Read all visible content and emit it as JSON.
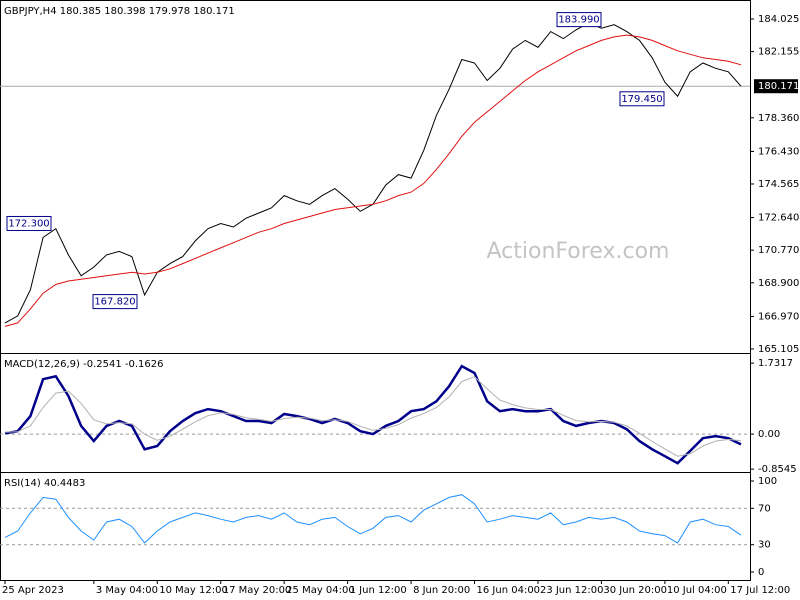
{
  "chart_data": [
    {
      "type": "line",
      "title": "GBPJPY,H4 180.385 180.398 179.978 180.171",
      "watermark": "ActionForex.com",
      "series": [
        {
          "color": "#000000",
          "values": [
            166.6,
            167.0,
            168.5,
            171.5,
            172.0,
            170.5,
            169.3,
            169.8,
            170.5,
            170.7,
            170.4,
            168.2,
            169.5,
            170.0,
            170.4,
            171.3,
            172.0,
            172.3,
            172.1,
            172.6,
            172.9,
            173.2,
            173.9,
            173.6,
            173.4,
            173.9,
            174.3,
            173.7,
            173.0,
            173.4,
            174.5,
            175.1,
            174.9,
            176.5,
            178.5,
            180.0,
            181.7,
            181.5,
            180.5,
            181.2,
            182.3,
            182.8,
            182.4,
            183.3,
            182.9,
            183.4,
            183.8,
            183.5,
            183.7,
            183.3,
            182.8,
            181.8,
            180.4,
            179.6,
            181.0,
            181.5,
            181.2,
            181.0,
            180.171
          ]
        },
        {
          "color": "#e01010",
          "values": [
            166.4,
            166.6,
            167.4,
            168.3,
            168.8,
            169.0,
            169.1,
            169.2,
            169.3,
            169.4,
            169.5,
            169.4,
            169.5,
            169.7,
            170.0,
            170.3,
            170.6,
            170.9,
            171.2,
            171.5,
            171.8,
            172.0,
            172.3,
            172.5,
            172.7,
            172.9,
            173.1,
            173.2,
            173.3,
            173.4,
            173.6,
            173.9,
            174.1,
            174.6,
            175.4,
            176.3,
            177.3,
            178.1,
            178.7,
            179.3,
            179.9,
            180.5,
            181.0,
            181.4,
            181.8,
            182.2,
            182.5,
            182.8,
            183.0,
            183.1,
            183.0,
            182.8,
            182.5,
            182.2,
            182.0,
            181.8,
            181.7,
            181.6,
            181.4
          ]
        }
      ],
      "ylim": [
        164.93,
        185.0
      ],
      "yticks": [
        184.025,
        182.155,
        {
          "value": 178.36,
          "label": "178.360"
        },
        {
          "value": 176.43,
          "label": "176.430"
        },
        174.565,
        {
          "value": 172.64,
          "label": "172.640"
        },
        {
          "value": 170.77,
          "label": "170.770"
        },
        {
          "value": 168.9,
          "label": "168.900"
        },
        {
          "value": 166.97,
          "label": "166.970"
        },
        165.105
      ],
      "last_price": 180.171,
      "annotations": [
        {
          "value": 172.3,
          "label": "172.300"
        },
        {
          "value": 167.82,
          "label": "167.820"
        },
        {
          "value": 183.99,
          "label": "183.990"
        },
        {
          "value": 179.45,
          "label": "179.450"
        }
      ]
    },
    {
      "type": "line",
      "title": "MACD(12,26,9) -0.2541 -0.1626",
      "series": [
        {
          "color": "#00008b",
          "values": [
            0.02,
            0.07,
            0.44,
            1.34,
            1.41,
            0.93,
            0.2,
            -0.17,
            0.2,
            0.32,
            0.2,
            -0.37,
            -0.29,
            0.07,
            0.32,
            0.51,
            0.61,
            0.56,
            0.44,
            0.32,
            0.32,
            0.27,
            0.49,
            0.44,
            0.37,
            0.27,
            0.37,
            0.27,
            0.07,
            0.0,
            0.2,
            0.32,
            0.56,
            0.61,
            0.8,
            1.17,
            1.66,
            1.49,
            0.8,
            0.56,
            0.61,
            0.56,
            0.56,
            0.61,
            0.32,
            0.2,
            0.27,
            0.32,
            0.27,
            0.12,
            -0.17,
            -0.37,
            -0.54,
            -0.71,
            -0.41,
            -0.1,
            -0.05,
            -0.1,
            -0.25
          ]
        },
        {
          "color": "#b0b0b0",
          "values": [
            0.05,
            0.06,
            0.2,
            0.65,
            1.0,
            1.05,
            0.75,
            0.35,
            0.25,
            0.28,
            0.25,
            0.0,
            -0.15,
            -0.05,
            0.12,
            0.3,
            0.45,
            0.52,
            0.48,
            0.4,
            0.36,
            0.31,
            0.38,
            0.41,
            0.39,
            0.33,
            0.35,
            0.31,
            0.19,
            0.09,
            0.14,
            0.23,
            0.39,
            0.5,
            0.65,
            0.91,
            1.28,
            1.4,
            1.1,
            0.83,
            0.72,
            0.64,
            0.6,
            0.6,
            0.46,
            0.33,
            0.3,
            0.31,
            0.29,
            0.2,
            0.02,
            -0.18,
            -0.36,
            -0.54,
            -0.48,
            -0.29,
            -0.17,
            -0.13,
            -0.16
          ]
        }
      ],
      "ylim": [
        -0.9,
        1.93
      ],
      "yticks": [
        1.7317,
        {
          "value": 0,
          "label": "0.00"
        },
        -0.8545
      ],
      "levels": [
        0
      ]
    },
    {
      "type": "line",
      "title": "RSI(14) 40.4483",
      "categories": [
        "25 Apr 2023",
        null,
        null,
        null,
        null,
        null,
        null,
        "3 May 04:00",
        null,
        null,
        null,
        null,
        "10 May 12:00",
        null,
        null,
        null,
        null,
        "17 May 20:00",
        null,
        null,
        null,
        null,
        "25 May 04:00",
        null,
        null,
        null,
        null,
        "1 Jun 12:00",
        null,
        null,
        null,
        null,
        "8 Jun 20:00",
        null,
        null,
        null,
        null,
        "16 Jun 04:00",
        null,
        null,
        null,
        null,
        "23 Jun 12:00",
        null,
        null,
        null,
        null,
        "30 Jun 20:00",
        null,
        null,
        null,
        null,
        "10 Jul 04:00",
        null,
        null,
        null,
        null,
        "17 Jul 12:00",
        null
      ],
      "series": [
        {
          "color": "#1e90ff",
          "values": [
            38,
            45,
            65,
            82,
            80,
            60,
            45,
            35,
            55,
            58,
            50,
            32,
            45,
            55,
            60,
            65,
            62,
            58,
            55,
            60,
            62,
            58,
            65,
            55,
            52,
            58,
            60,
            50,
            42,
            48,
            60,
            62,
            55,
            68,
            75,
            82,
            85,
            75,
            55,
            58,
            62,
            60,
            58,
            65,
            52,
            55,
            60,
            58,
            60,
            55,
            45,
            42,
            40,
            32,
            55,
            58,
            52,
            50,
            40.4483
          ]
        }
      ],
      "ylim": [
        -8.8,
        107.7
      ],
      "yticks": [
        100,
        70,
        30,
        0
      ],
      "levels": [
        70,
        30
      ]
    }
  ]
}
